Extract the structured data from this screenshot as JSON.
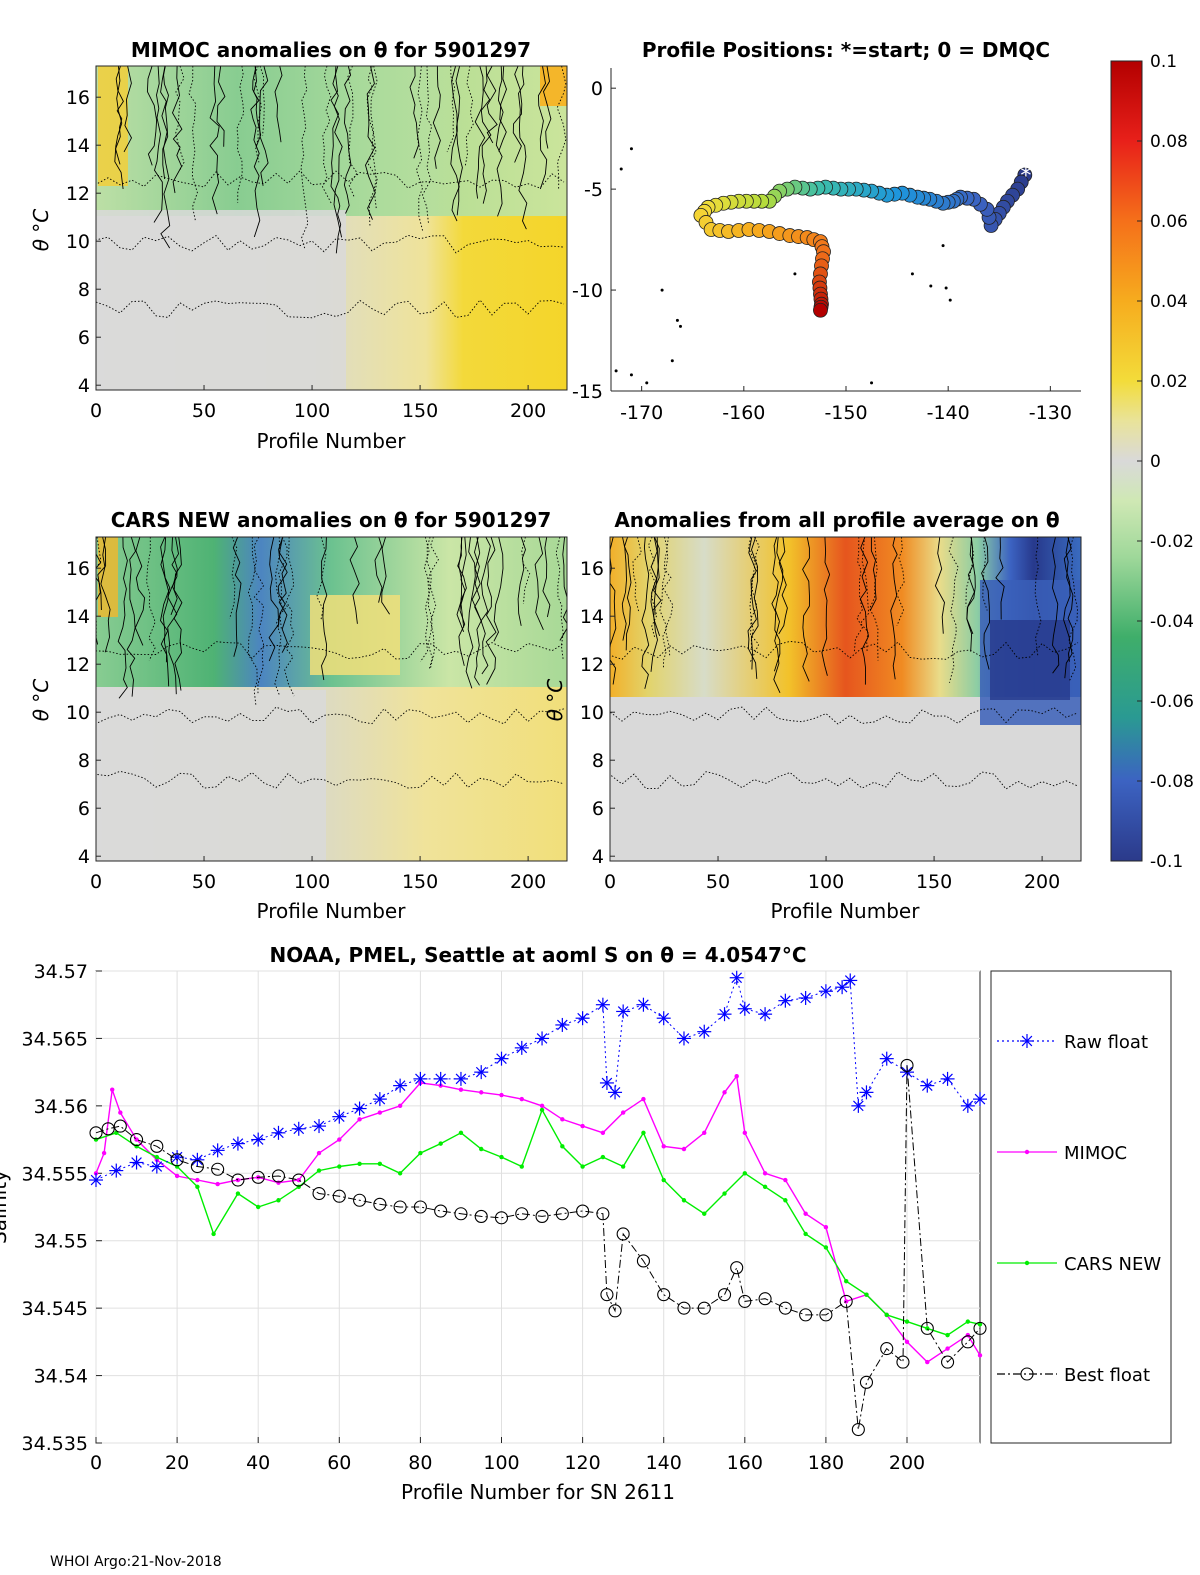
{
  "footer": "WHOI Argo:21-Nov-2018",
  "colors": {
    "raw": "#0000ff",
    "mimoc": "#ff00ff",
    "cars": "#00ee00",
    "best": "#000000",
    "anomaly_neutral": "#d9d9d9",
    "anomaly_positive": "#f2d21a",
    "anomaly_negative": "#9fd89a"
  },
  "chart_data": [
    {
      "id": "mimoc-section",
      "type": "heatmap",
      "title": "MIMOC anomalies on θ  for 5901297",
      "xlabel": "Profile Number",
      "ylabel": "θ °C",
      "xlim": [
        0,
        218
      ],
      "ylim": [
        3.8,
        17.3
      ],
      "xticks": [
        0,
        50,
        100,
        150,
        200
      ],
      "yticks": [
        4,
        6,
        8,
        10,
        12,
        14,
        16
      ],
      "description": "gridded anomaly, positive (yellow) at profiles 160-218 between 4-12 °C, negative (green) above 12 °C"
    },
    {
      "id": "profile-positions",
      "type": "scatter",
      "title": "Profile Positions: *=start; 0 = DMQC",
      "xlim": [
        -173,
        -127
      ],
      "ylim": [
        -15,
        1
      ],
      "xticks": [
        -170,
        -160,
        -150,
        -140,
        -130
      ],
      "yticks": [
        0,
        -5,
        -10,
        -15
      ],
      "track": {
        "lon": [
          -132.5,
          -133.2,
          -134.2,
          -135.0,
          -135.8,
          -136.2,
          -137.5,
          -138.8,
          -139.5,
          -140.5,
          -141.8,
          -143.0,
          -144.5,
          -146.0,
          -147.5,
          -149.0,
          -150.5,
          -152.0,
          -153.5,
          -155.0,
          -156.5,
          -157.5,
          -159.0,
          -160.5,
          -162.0,
          -163.5,
          -164.2,
          -163.2,
          -161.5,
          -159.5,
          -157.5,
          -155.5,
          -153.8,
          -152.5,
          -152.2,
          -152.4,
          -152.6,
          -152.5,
          -152.4,
          -152.5
        ],
        "lat": [
          -4.3,
          -5.0,
          -5.6,
          -6.2,
          -6.8,
          -6.0,
          -5.5,
          -5.4,
          -5.6,
          -5.7,
          -5.5,
          -5.4,
          -5.2,
          -5.3,
          -5.1,
          -5.0,
          -5.0,
          -4.9,
          -5.0,
          -4.9,
          -5.1,
          -5.6,
          -5.6,
          -5.6,
          -5.7,
          -5.9,
          -6.3,
          -7.0,
          -7.1,
          -7.0,
          -7.1,
          -7.3,
          -7.4,
          -7.6,
          -8.1,
          -8.8,
          -9.6,
          -10.2,
          -10.7,
          -11.0
        ]
      },
      "start_marker": {
        "lon": -132.4,
        "lat": -4.3
      }
    },
    {
      "id": "cars-section",
      "type": "heatmap",
      "title": "CARS NEW anomalies on θ for 5901297",
      "xlabel": "Profile Number",
      "ylabel": "θ °C",
      "xlim": [
        0,
        218
      ],
      "ylim": [
        3.8,
        17.3
      ],
      "xticks": [
        0,
        50,
        100,
        150,
        200
      ],
      "yticks": [
        4,
        6,
        8,
        10,
        12,
        14,
        16
      ],
      "description": "gridded anomaly, negative (green/blue) above 12 °C, weak positive (yellow) at profiles 110-218"
    },
    {
      "id": "mean-section",
      "type": "heatmap",
      "title": "Anomalies from all profile average on θ",
      "xlabel": "Profile Number",
      "ylabel": "θ °C",
      "xlim": [
        0,
        218
      ],
      "ylim": [
        3.8,
        17.3
      ],
      "xticks": [
        0,
        50,
        100,
        150,
        200
      ],
      "yticks": [
        4,
        6,
        8,
        10,
        12,
        14,
        16
      ],
      "description": "warm (orange/red) anomaly at profiles 85-150 above 11 °C, cold (blue) anomaly at profiles 175-218 between 10-16 °C"
    },
    {
      "id": "colorbar",
      "type": "heatmap",
      "clim": [
        -0.1,
        0.1
      ],
      "ticks": [
        "0.1",
        "0.08",
        "0.06",
        "0.04",
        "0.02",
        "0",
        "-0.02",
        "-0.04",
        "-0.06",
        "-0.08",
        "-0.1"
      ]
    },
    {
      "id": "salinity-series",
      "type": "line",
      "title": "NOAA, PMEL, Seattle at aoml S on θ = 4.0547°C",
      "xlabel": "Profile Number for SN 2611",
      "ylabel": "Salinity",
      "xlim": [
        0,
        218
      ],
      "ylim": [
        34.535,
        34.57
      ],
      "xticks": [
        0,
        20,
        40,
        60,
        80,
        100,
        120,
        140,
        160,
        180,
        200
      ],
      "yticks": [
        "34.535",
        "34.54",
        "34.545",
        "34.55",
        "34.555",
        "34.56",
        "34.565",
        "34.57"
      ],
      "legend_position": "outside-right",
      "series": [
        {
          "name": "Raw float",
          "marker": "asterisk",
          "line": "dotted",
          "x": [
            0,
            5,
            10,
            15,
            20,
            25,
            30,
            35,
            40,
            45,
            50,
            55,
            60,
            65,
            70,
            75,
            80,
            85,
            90,
            95,
            100,
            105,
            110,
            115,
            120,
            125,
            126,
            128,
            130,
            135,
            140,
            145,
            150,
            155,
            158,
            160,
            165,
            170,
            175,
            180,
            184,
            186,
            188,
            190,
            195,
            200,
            205,
            210,
            215,
            218
          ],
          "y": [
            34.5545,
            34.5552,
            34.5558,
            34.5555,
            34.5562,
            34.556,
            34.5567,
            34.5572,
            34.5575,
            34.558,
            34.5583,
            34.5585,
            34.5592,
            34.5598,
            34.5605,
            34.5615,
            34.562,
            34.562,
            34.562,
            34.5625,
            34.5635,
            34.5643,
            34.565,
            34.566,
            34.5665,
            34.5675,
            34.5617,
            34.561,
            34.567,
            34.5675,
            34.5665,
            34.565,
            34.5655,
            34.5668,
            34.5695,
            34.5672,
            34.5668,
            34.5678,
            34.568,
            34.5685,
            34.5688,
            34.5693,
            34.56,
            34.561,
            34.5635,
            34.5625,
            34.5615,
            34.562,
            34.56,
            34.5605
          ]
        },
        {
          "name": "MIMOC",
          "marker": "dot",
          "line": "solid",
          "x": [
            0,
            2,
            4,
            6,
            10,
            15,
            20,
            25,
            30,
            35,
            40,
            45,
            50,
            55,
            60,
            65,
            70,
            75,
            80,
            85,
            90,
            95,
            100,
            105,
            110,
            115,
            120,
            125,
            130,
            135,
            140,
            145,
            150,
            155,
            158,
            160,
            165,
            170,
            175,
            180,
            185,
            190,
            195,
            200,
            205,
            210,
            215,
            218
          ],
          "y": [
            34.555,
            34.5565,
            34.5612,
            34.5595,
            34.5575,
            34.556,
            34.5548,
            34.5545,
            34.5542,
            34.5545,
            34.5547,
            34.5543,
            34.5545,
            34.5565,
            34.5575,
            34.559,
            34.5595,
            34.56,
            34.5617,
            34.5615,
            34.5612,
            34.561,
            34.5608,
            34.5605,
            34.56,
            34.559,
            34.5585,
            34.558,
            34.5595,
            34.5605,
            34.557,
            34.5568,
            34.558,
            34.561,
            34.5622,
            34.558,
            34.555,
            34.5545,
            34.552,
            34.551,
            34.5455,
            34.546,
            34.5445,
            34.5425,
            34.541,
            34.542,
            34.543,
            34.5415
          ]
        },
        {
          "name": "CARS NEW",
          "marker": "dot",
          "line": "solid",
          "x": [
            0,
            5,
            10,
            15,
            20,
            25,
            29,
            35,
            40,
            45,
            50,
            55,
            60,
            65,
            70,
            75,
            80,
            85,
            90,
            95,
            100,
            105,
            110,
            115,
            120,
            125,
            130,
            135,
            140,
            145,
            150,
            155,
            160,
            165,
            170,
            175,
            180,
            185,
            190,
            195,
            200,
            205,
            210,
            215,
            218
          ],
          "y": [
            34.5575,
            34.558,
            34.557,
            34.5562,
            34.5555,
            34.554,
            34.5505,
            34.5535,
            34.5525,
            34.553,
            34.554,
            34.5552,
            34.5555,
            34.5557,
            34.5557,
            34.555,
            34.5565,
            34.5572,
            34.558,
            34.5568,
            34.5562,
            34.5555,
            34.5597,
            34.557,
            34.5555,
            34.5562,
            34.5555,
            34.558,
            34.5545,
            34.553,
            34.552,
            34.5535,
            34.555,
            34.554,
            34.553,
            34.5505,
            34.5495,
            34.547,
            34.546,
            34.5445,
            34.544,
            34.5435,
            34.543,
            34.544,
            34.5438
          ]
        },
        {
          "name": "Best float",
          "marker": "circle",
          "line": "dashdot",
          "x": [
            0,
            3,
            6,
            10,
            15,
            20,
            25,
            30,
            35,
            40,
            45,
            50,
            55,
            60,
            65,
            70,
            75,
            80,
            85,
            90,
            95,
            100,
            105,
            110,
            115,
            120,
            125,
            126,
            128,
            130,
            135,
            140,
            145,
            150,
            155,
            158,
            160,
            165,
            170,
            175,
            180,
            185,
            188,
            190,
            195,
            199,
            200,
            205,
            210,
            215,
            218
          ],
          "y": [
            34.558,
            34.5583,
            34.5585,
            34.5575,
            34.557,
            34.556,
            34.5555,
            34.5553,
            34.5545,
            34.5547,
            34.5548,
            34.5545,
            34.5535,
            34.5533,
            34.553,
            34.5527,
            34.5525,
            34.5525,
            34.5522,
            34.552,
            34.5518,
            34.5517,
            34.552,
            34.5518,
            34.552,
            34.5522,
            34.552,
            34.546,
            34.5448,
            34.5505,
            34.5485,
            34.546,
            34.545,
            34.545,
            34.546,
            34.548,
            34.5455,
            34.5457,
            34.545,
            34.5445,
            34.5445,
            34.5455,
            34.536,
            34.5395,
            34.542,
            34.541,
            34.563,
            34.5435,
            34.541,
            34.5425,
            34.5435
          ]
        }
      ]
    }
  ]
}
